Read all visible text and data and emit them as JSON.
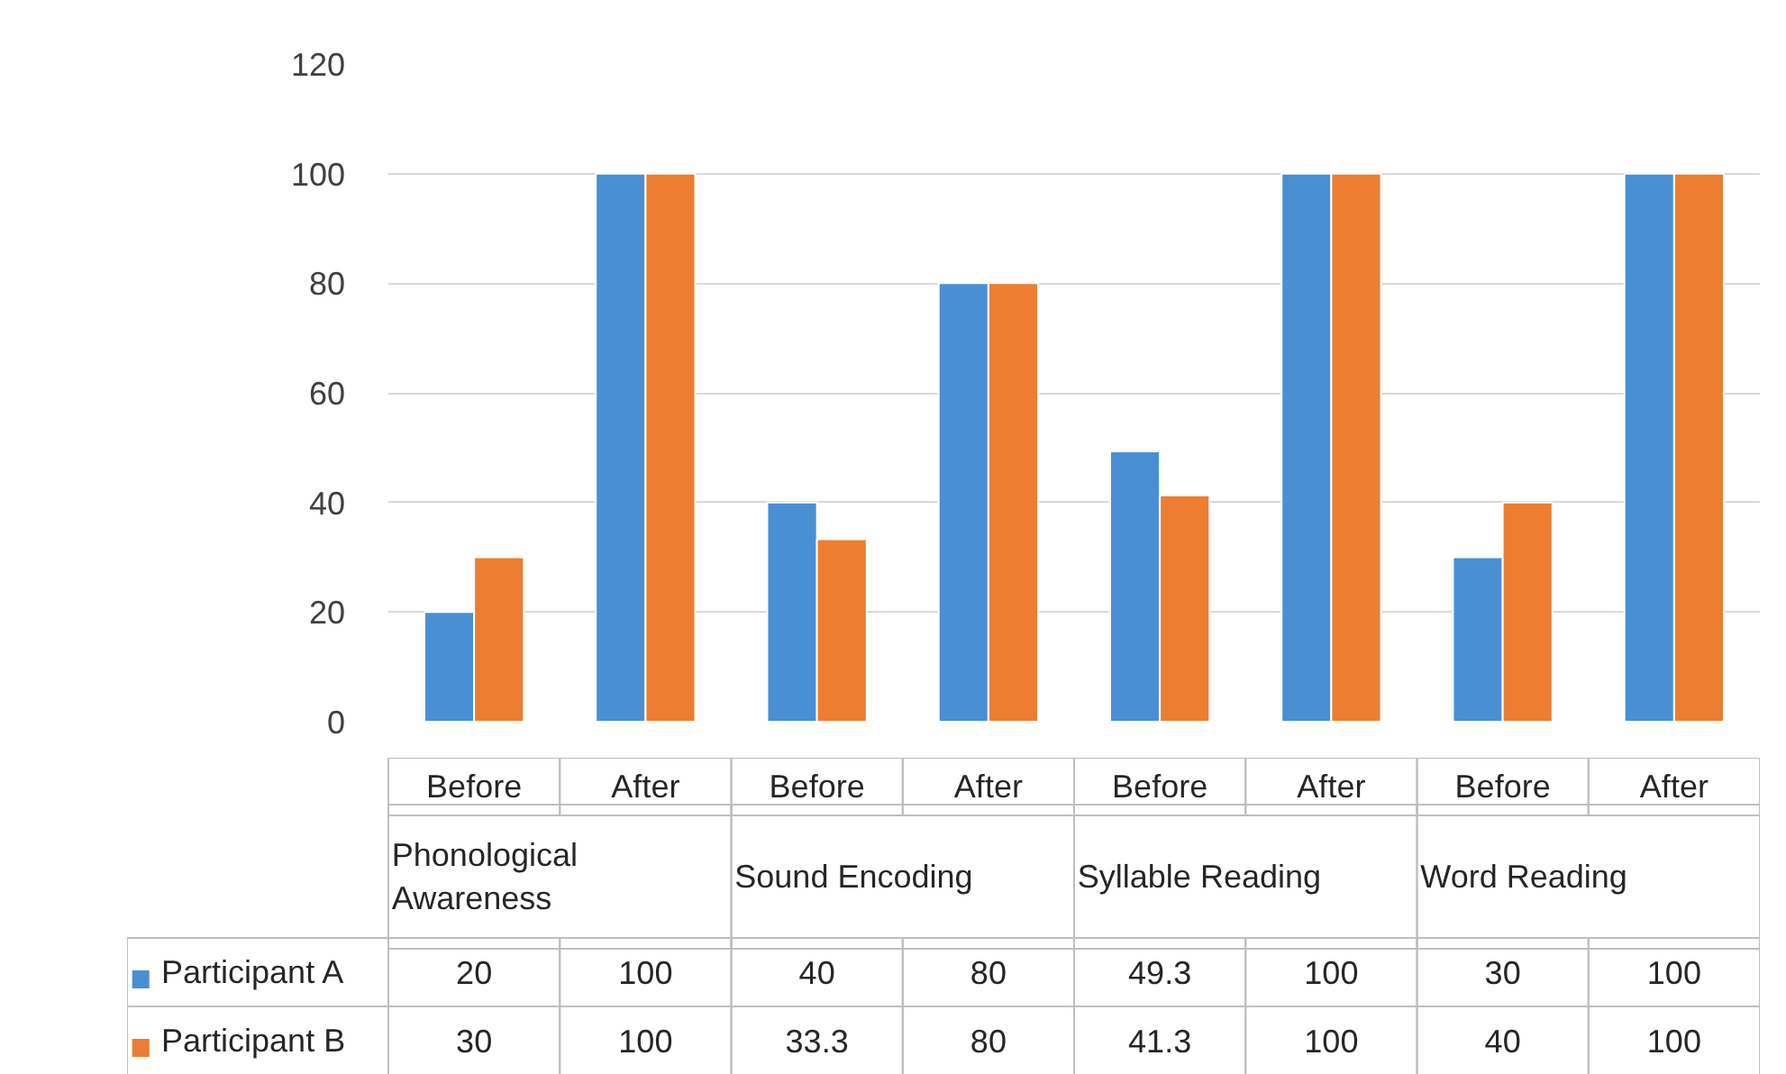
{
  "chart_data": {
    "type": "bar",
    "categories": [
      "Before",
      "After",
      "Before",
      "After",
      "Before",
      "After",
      "Before",
      "After"
    ],
    "annotations": [
      "Phonological Awareness",
      "Sound Encoding",
      "Syllable Reading",
      "Word Reading"
    ],
    "series": [
      {
        "name": "Participant A",
        "color": "#4a8fd4",
        "values": [
          20,
          100,
          40,
          80,
          49.3,
          100,
          30,
          100
        ]
      },
      {
        "name": "Participant B",
        "color": "#ed7d31",
        "values": [
          30,
          100,
          33.3,
          80,
          41.3,
          100,
          40,
          100
        ]
      }
    ],
    "ylim": [
      0,
      120
    ],
    "yticks": [
      0,
      20,
      40,
      60,
      80,
      100,
      120
    ],
    "grid": "y",
    "legend": "bottom left",
    "data_labels": true
  }
}
